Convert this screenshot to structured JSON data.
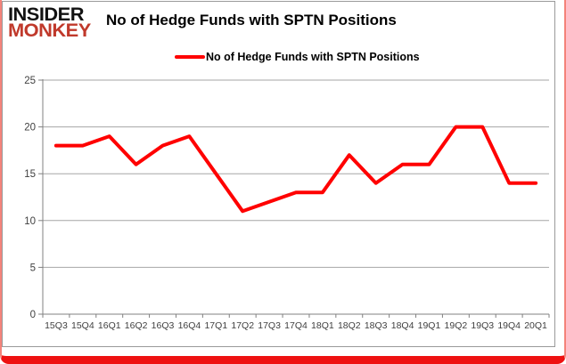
{
  "logo": {
    "line1": "INSIDER",
    "line2": "MONKEY",
    "line1_color": "#121212",
    "line2_color": "#c0392b"
  },
  "header": {
    "title": "No of Hedge Funds with SPTN Positions"
  },
  "legend": {
    "label": "No of Hedge Funds with SPTN Positions",
    "swatch_color": "#ff0000"
  },
  "colors": {
    "series_line": "#ff0000",
    "gridline": "#a6a6a6",
    "axis": "#808080",
    "tick_label": "#404040",
    "frame_bottom_bar": "#ee1111",
    "frame_side": "#f4837a",
    "chart_border": "#9a9a9a"
  },
  "chart_data": {
    "type": "line",
    "title": "No of Hedge Funds with SPTN Positions",
    "xlabel": "",
    "ylabel": "",
    "categories": [
      "15Q3",
      "15Q4",
      "16Q1",
      "16Q2",
      "16Q3",
      "16Q4",
      "17Q1",
      "17Q2",
      "17Q3",
      "17Q4",
      "18Q1",
      "18Q2",
      "18Q3",
      "18Q4",
      "19Q1",
      "19Q2",
      "19Q3",
      "19Q4",
      "20Q1"
    ],
    "series": [
      {
        "name": "No of Hedge Funds with SPTN Positions",
        "color": "#ff0000",
        "values": [
          18,
          18,
          19,
          16,
          18,
          19,
          15,
          11,
          12,
          13,
          13,
          17,
          14,
          16,
          16,
          20,
          20,
          14,
          14
        ]
      }
    ],
    "ylim": [
      0,
      25
    ],
    "ytick_step": 5,
    "yticks": [
      0,
      5,
      10,
      15,
      20,
      25
    ],
    "grid": "horizontal",
    "legend_position": "top-center"
  }
}
